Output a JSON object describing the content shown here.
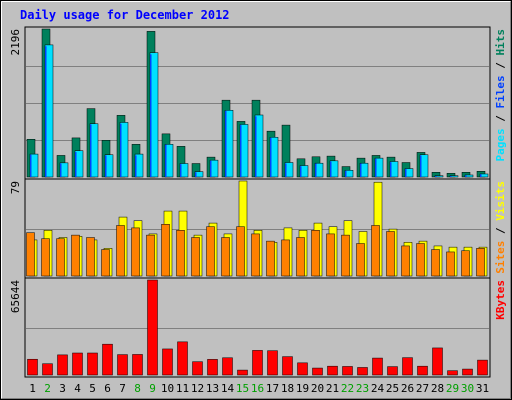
{
  "chart_data": {
    "type": "bar",
    "title": "Daily usage for December 2012",
    "categories": [
      "1",
      "2",
      "3",
      "4",
      "5",
      "6",
      "7",
      "8",
      "9",
      "10",
      "11",
      "12",
      "13",
      "14",
      "15",
      "16",
      "17",
      "18",
      "19",
      "20",
      "21",
      "22",
      "23",
      "24",
      "25",
      "26",
      "27",
      "28",
      "29",
      "30",
      "31"
    ],
    "weekend_days": [
      "2",
      "8",
      "9",
      "15",
      "16",
      "22",
      "23",
      "29",
      "30"
    ],
    "panels": [
      {
        "id": "hits-files-pages",
        "max_label": "2196",
        "ymax": 2196,
        "legend": [
          {
            "name": "Pages",
            "color": "#00e0ff"
          },
          {
            "name": "Files",
            "color": "#0040ff"
          },
          {
            "name": "Hits",
            "color": "#00805c"
          }
        ],
        "series": [
          {
            "name": "Hits",
            "color": "#00805c",
            "values": [
              560,
              2196,
              320,
              580,
              1015,
              545,
              915,
              485,
              2161,
              640,
              455,
              200,
              295,
              1140,
              825,
              1140,
              680,
              770,
              270,
              300,
              310,
              155,
              280,
              320,
              295,
              215,
              365,
              70,
              55,
              70,
              85
            ]
          },
          {
            "name": "Files",
            "color": "#00e0ff",
            "values": [
              340,
              1960,
              210,
              390,
              790,
              330,
              810,
              340,
              1845,
              485,
              200,
              80,
              250,
              990,
              780,
              920,
              590,
              215,
              170,
              205,
              240,
              100,
              205,
              280,
              230,
              125,
              330,
              20,
              20,
              30,
              45
            ]
          },
          {
            "name": "Pages",
            "color": "#0040ff",
            "values": [
              330,
              1940,
              200,
              370,
              780,
              320,
              790,
              320,
              1820,
              480,
              190,
              70,
              240,
              980,
              770,
              900,
              580,
              200,
              160,
              200,
              230,
              90,
              200,
              270,
              220,
              120,
              320,
              15,
              15,
              25,
              40
            ]
          }
        ]
      },
      {
        "id": "visits-sites",
        "max_label": "79",
        "ymax": 79,
        "legend": [
          {
            "name": "Sites",
            "color": "#ff8000"
          },
          {
            "name": "Visits",
            "color": "#ffff00"
          }
        ],
        "series": [
          {
            "name": "Visits",
            "color": "#ffff00",
            "values": [
              30,
              38,
              32,
              33,
              30,
              23,
              49,
              46,
              35,
              54,
              54,
              34,
              44,
              35,
              79,
              38,
              28,
              40,
              38,
              44,
              41,
              46,
              37,
              78,
              39,
              28,
              29,
              25,
              24,
              24,
              24
            ]
          },
          {
            "name": "Sites",
            "color": "#ff8000",
            "values": [
              36,
              31,
              31,
              34,
              32,
              22,
              42,
              40,
              34,
              43,
              38,
              32,
              41,
              32,
              41,
              35,
              29,
              30,
              32,
              38,
              35,
              34,
              27,
              42,
              37,
              25,
              27,
              22,
              20,
              21,
              23
            ]
          }
        ]
      },
      {
        "id": "kbytes",
        "max_label": "65644",
        "ymax": 65644,
        "legend": [
          {
            "name": "KBytes",
            "color": "#ff0000"
          }
        ],
        "series": [
          {
            "name": "KBytes",
            "color": "#ff0000",
            "values": [
              10900,
              7800,
              13900,
              15200,
              15200,
              21300,
              14100,
              14200,
              65644,
              18000,
              22900,
              9200,
              10800,
              11900,
              3400,
              17000,
              16800,
              12700,
              8400,
              4800,
              6100,
              5900,
              5200,
              11700,
              5800,
              12000,
              6100,
              18700,
              3000,
              4100,
              10300
            ]
          }
        ]
      }
    ]
  }
}
